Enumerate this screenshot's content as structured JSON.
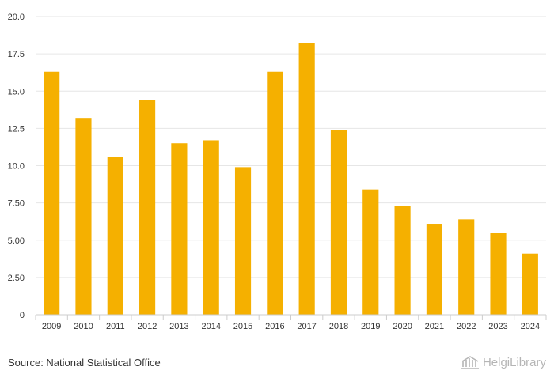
{
  "chart_data": {
    "type": "bar",
    "categories": [
      "2009",
      "2010",
      "2011",
      "2012",
      "2013",
      "2014",
      "2015",
      "2016",
      "2017",
      "2018",
      "2019",
      "2020",
      "2021",
      "2022",
      "2023",
      "2024"
    ],
    "values": [
      16.3,
      13.2,
      10.6,
      14.4,
      11.5,
      11.7,
      9.9,
      16.3,
      18.2,
      12.4,
      8.4,
      7.3,
      6.1,
      6.4,
      5.5,
      4.1
    ],
    "ylim": [
      0,
      20
    ],
    "yticks": [
      0,
      2.5,
      5,
      7.5,
      10,
      12.5,
      15,
      17.5,
      20
    ],
    "ytick_labels": [
      "0",
      "2.50",
      "5.00",
      "7.50",
      "10.0",
      "12.5",
      "15.0",
      "17.5",
      "20.0"
    ],
    "title": "",
    "xlabel": "",
    "ylabel": "",
    "grid": true,
    "bar_color": "#f5b000"
  },
  "footer": {
    "source": "Source: National Statistical Office"
  },
  "brand": {
    "name": "HelgiLibrary",
    "icon": "library-building-icon"
  }
}
